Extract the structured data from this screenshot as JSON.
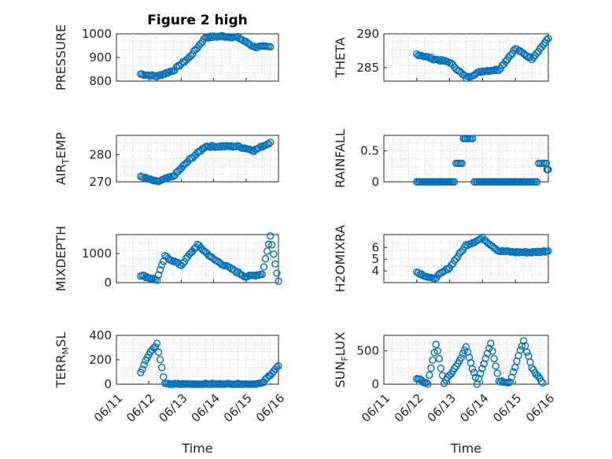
{
  "figure": {
    "title": "Figure 2 high"
  },
  "chart_data": [
    {
      "type": "scatter",
      "id": "pressure",
      "ylabel": "PRESSURE",
      "ylabel_sub": "",
      "xlabel": "",
      "xlim": [
        "06/11",
        "06/16"
      ],
      "xticks": [
        "06/11",
        "06/12",
        "06/13",
        "06/14",
        "06/15",
        "06/16"
      ],
      "ylim": [
        800,
        1000
      ],
      "yticks": [
        800,
        900,
        1000
      ],
      "grid": true,
      "marker_color": "#0072bd",
      "x": [
        "06/11 18:00",
        "06/12 06:00",
        "06/12 18:00",
        "06/13 06:00",
        "06/13 18:00",
        "06/14 06:00",
        "06/14 18:00",
        "06/15 06:00",
        "06/15 18:00"
      ],
      "y": [
        830,
        820,
        845,
        900,
        985,
        990,
        985,
        945,
        945
      ]
    },
    {
      "type": "scatter",
      "id": "theta",
      "ylabel": "THETA",
      "ylabel_sub": "",
      "xlabel": "",
      "xlim": [
        "06/11",
        "06/16"
      ],
      "xticks": [
        "06/11",
        "06/12",
        "06/13",
        "06/14",
        "06/15",
        "06/16"
      ],
      "ylim": [
        283,
        290
      ],
      "yticks": [
        285,
        290
      ],
      "grid": true,
      "marker_color": "#0072bd",
      "x": [
        "06/12 00:00",
        "06/12 12:00",
        "06/13 00:00",
        "06/13 12:00",
        "06/14 00:00",
        "06/14 12:00",
        "06/15 00:00",
        "06/15 12:00",
        "06/16 00:00"
      ],
      "y": [
        287,
        286.3,
        285.8,
        283.5,
        284.5,
        284.7,
        287.8,
        286.3,
        289.3
      ]
    },
    {
      "type": "scatter",
      "id": "air_temp",
      "ylabel": "AIR",
      "ylabel_sub": "T",
      "ylabel_after": "EMP",
      "xlabel": "",
      "xlim": [
        "06/11",
        "06/16"
      ],
      "xticks": [
        "06/11",
        "06/12",
        "06/13",
        "06/14",
        "06/15",
        "06/16"
      ],
      "ylim": [
        270,
        287
      ],
      "yticks": [
        270,
        280
      ],
      "grid": true,
      "marker_color": "#0072bd",
      "x": [
        "06/11 18:00",
        "06/12 06:00",
        "06/12 18:00",
        "06/13 06:00",
        "06/13 18:00",
        "06/14 06:00",
        "06/14 18:00",
        "06/15 06:00",
        "06/15 18:00"
      ],
      "y": [
        272,
        270,
        272,
        278,
        283,
        283,
        283,
        281.5,
        284.5
      ]
    },
    {
      "type": "scatter",
      "id": "rainfall",
      "ylabel": "RAINFALL",
      "ylabel_sub": "",
      "xlabel": "",
      "xlim": [
        "06/11",
        "06/16"
      ],
      "xticks": [
        "06/11",
        "06/12",
        "06/13",
        "06/14",
        "06/15",
        "06/16"
      ],
      "ylim": [
        0,
        0.75
      ],
      "yticks": [
        0,
        0.5
      ],
      "grid": true,
      "marker_color": "#0072bd",
      "x": [
        "06/12 00:00",
        "06/12 12:00",
        "06/13 00:00",
        "06/13 08:00",
        "06/13 12:00",
        "06/14 00:00",
        "06/14 12:00",
        "06/15 00:00",
        "06/15 12:00",
        "06/15 22:00",
        "06/16 00:00"
      ],
      "y": [
        0,
        0,
        0,
        0.3,
        0.7,
        0,
        0,
        0,
        0,
        0.3,
        0.2
      ]
    },
    {
      "type": "scatter",
      "id": "mixdepth",
      "ylabel": "MIXDEPTH",
      "ylabel_sub": "",
      "xlabel": "",
      "xlim": [
        "06/11",
        "06/16"
      ],
      "xticks": [
        "06/11",
        "06/12",
        "06/13",
        "06/14",
        "06/15",
        "06/16"
      ],
      "ylim": [
        0,
        1650
      ],
      "yticks": [
        0,
        1000
      ],
      "grid": true,
      "marker_color": "#0072bd",
      "x": [
        "06/11 18:00",
        "06/12 06:00",
        "06/12 12:00",
        "06/13 00:00",
        "06/13 12:00",
        "06/14 00:00",
        "06/14 12:00",
        "06/15 00:00",
        "06/15 12:00",
        "06/15 18:00",
        "06/16 00:00"
      ],
      "y": [
        250,
        100,
        900,
        600,
        1300,
        800,
        500,
        200,
        300,
        1600,
        50
      ]
    },
    {
      "type": "scatter",
      "id": "h2omixra",
      "ylabel": "H2OMIXRA",
      "ylabel_sub": "",
      "xlabel": "",
      "xlim": [
        "06/11",
        "06/16"
      ],
      "xticks": [
        "06/11",
        "06/12",
        "06/13",
        "06/14",
        "06/15",
        "06/16"
      ],
      "ylim": [
        3,
        7.1
      ],
      "yticks": [
        4,
        5,
        6
      ],
      "grid": true,
      "marker_color": "#0072bd",
      "x": [
        "06/12 00:00",
        "06/12 12:00",
        "06/13 00:00",
        "06/13 12:00",
        "06/14 00:00",
        "06/14 12:00",
        "06/15 00:00",
        "06/15 12:00",
        "06/16 00:00"
      ],
      "y": [
        3.9,
        3.3,
        4.3,
        6.2,
        6.8,
        5.7,
        5.6,
        5.6,
        5.7
      ]
    },
    {
      "type": "scatter",
      "id": "terr_msl",
      "ylabel": "TERR",
      "ylabel_sub": "M",
      "ylabel_after": "SL",
      "xlabel": "Time",
      "xlim": [
        "06/11",
        "06/16"
      ],
      "xticks": [
        "06/11",
        "06/12",
        "06/13",
        "06/14",
        "06/15",
        "06/16"
      ],
      "ylim": [
        0,
        400
      ],
      "yticks": [
        0,
        200,
        400
      ],
      "grid": true,
      "marker_color": "#0072bd",
      "x": [
        "06/11 18:00",
        "06/12 00:00",
        "06/12 06:00",
        "06/12 12:00",
        "06/13 00:00",
        "06/13 12:00",
        "06/14 00:00",
        "06/14 12:00",
        "06/15 00:00",
        "06/15 12:00",
        "06/15 18:00",
        "06/16 00:00"
      ],
      "y": [
        100,
        250,
        330,
        0,
        0,
        0,
        0,
        0,
        0,
        5,
        80,
        150
      ]
    },
    {
      "type": "scatter",
      "id": "sun_flux",
      "ylabel": "SUN",
      "ylabel_sub": "F",
      "ylabel_after": "LUX",
      "xlabel": "Time",
      "xlim": [
        "06/11",
        "06/16"
      ],
      "xticks": [
        "06/11",
        "06/12",
        "06/13",
        "06/14",
        "06/15",
        "06/16"
      ],
      "ylim": [
        0,
        730
      ],
      "yticks": [
        0,
        500
      ],
      "grid": true,
      "marker_color": "#0072bd",
      "x": [
        "06/12 00:00",
        "06/12 08:00",
        "06/12 14:00",
        "06/12 20:00",
        "06/13 06:00",
        "06/13 12:00",
        "06/13 20:00",
        "06/14 06:00",
        "06/14 12:00",
        "06/14 20:00",
        "06/15 06:00",
        "06/15 12:00",
        "06/15 20:00"
      ],
      "y": [
        80,
        10,
        600,
        20,
        300,
        550,
        10,
        620,
        50,
        30,
        650,
        250,
        20
      ]
    }
  ]
}
